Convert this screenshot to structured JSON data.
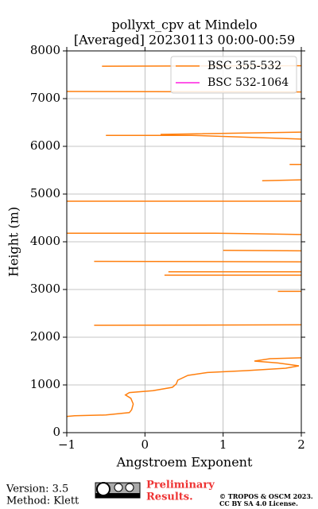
{
  "chart_data": {
    "type": "line",
    "title": "pollyxt_cpv at Mindelo",
    "subtitle": "[Averaged] 20230113 00:00-00:59",
    "x_label": "Angstroem Exponent",
    "y_label": "Height (m)",
    "xlim": [
      -1,
      2
    ],
    "ylim": [
      0,
      8000
    ],
    "xticks": [
      {
        "value": -1,
        "label": "−1"
      },
      0,
      1,
      2
    ],
    "yticks": [
      0,
      1000,
      2000,
      3000,
      4000,
      5000,
      6000,
      7000,
      8000
    ],
    "grid": true,
    "legend": "upper right",
    "series": [
      {
        "name": "BSC 355-532",
        "color": "#ff7f0e",
        "x": [
          -1,
          -0.9,
          -0.5,
          -0.2,
          -0.17,
          -0.15,
          -0.18,
          -0.25,
          -0.2,
          0.1,
          0.35,
          0.4,
          0.42,
          0.55,
          0.8,
          1.3,
          1.8,
          1.97,
          1.7,
          1.4,
          1.6,
          2.05,
          null,
          -0.65,
          2.05,
          null,
          1.7,
          2.05,
          null,
          0.25,
          2.05,
          null,
          0.3,
          2.05,
          null,
          -0.65,
          2.05,
          null,
          1.0,
          2.05,
          null,
          -1.05,
          0.9,
          1.3,
          2.05,
          null,
          -1.05,
          2.05,
          null,
          1.5,
          2.05,
          null,
          1.85,
          2.05,
          null,
          -0.5,
          0.6,
          2.05,
          null,
          0.2,
          2.05,
          null,
          -1.05,
          2.05,
          null,
          -0.55,
          2.05
        ],
        "values": [
          340,
          355,
          370,
          420,
          480,
          600,
          720,
          790,
          840,
          880,
          950,
          1020,
          1100,
          1200,
          1260,
          1300,
          1350,
          1400,
          1460,
          1500,
          1550,
          1570,
          null,
          2250,
          2260,
          null,
          2960,
          2960,
          null,
          3300,
          3300,
          null,
          3370,
          3370,
          null,
          3590,
          3580,
          null,
          3820,
          3810,
          null,
          4180,
          4180,
          4170,
          4150,
          null,
          4850,
          4850,
          null,
          5280,
          5300,
          null,
          5620,
          5620,
          null,
          6230,
          6230,
          6150,
          null,
          6250,
          6300,
          null,
          7150,
          7140,
          null,
          7680,
          7690
        ]
      },
      {
        "name": "BSC 532-1064",
        "color": "#ff1fe0",
        "x": [],
        "values": []
      }
    ]
  },
  "footer": {
    "version": "Version: 3.5",
    "method": "Method: Klett",
    "preliminary": [
      "Preliminary",
      "Results."
    ],
    "license": [
      "© TROPOS & OSCM 2023.",
      "CC BY SA 4.0 License."
    ]
  }
}
